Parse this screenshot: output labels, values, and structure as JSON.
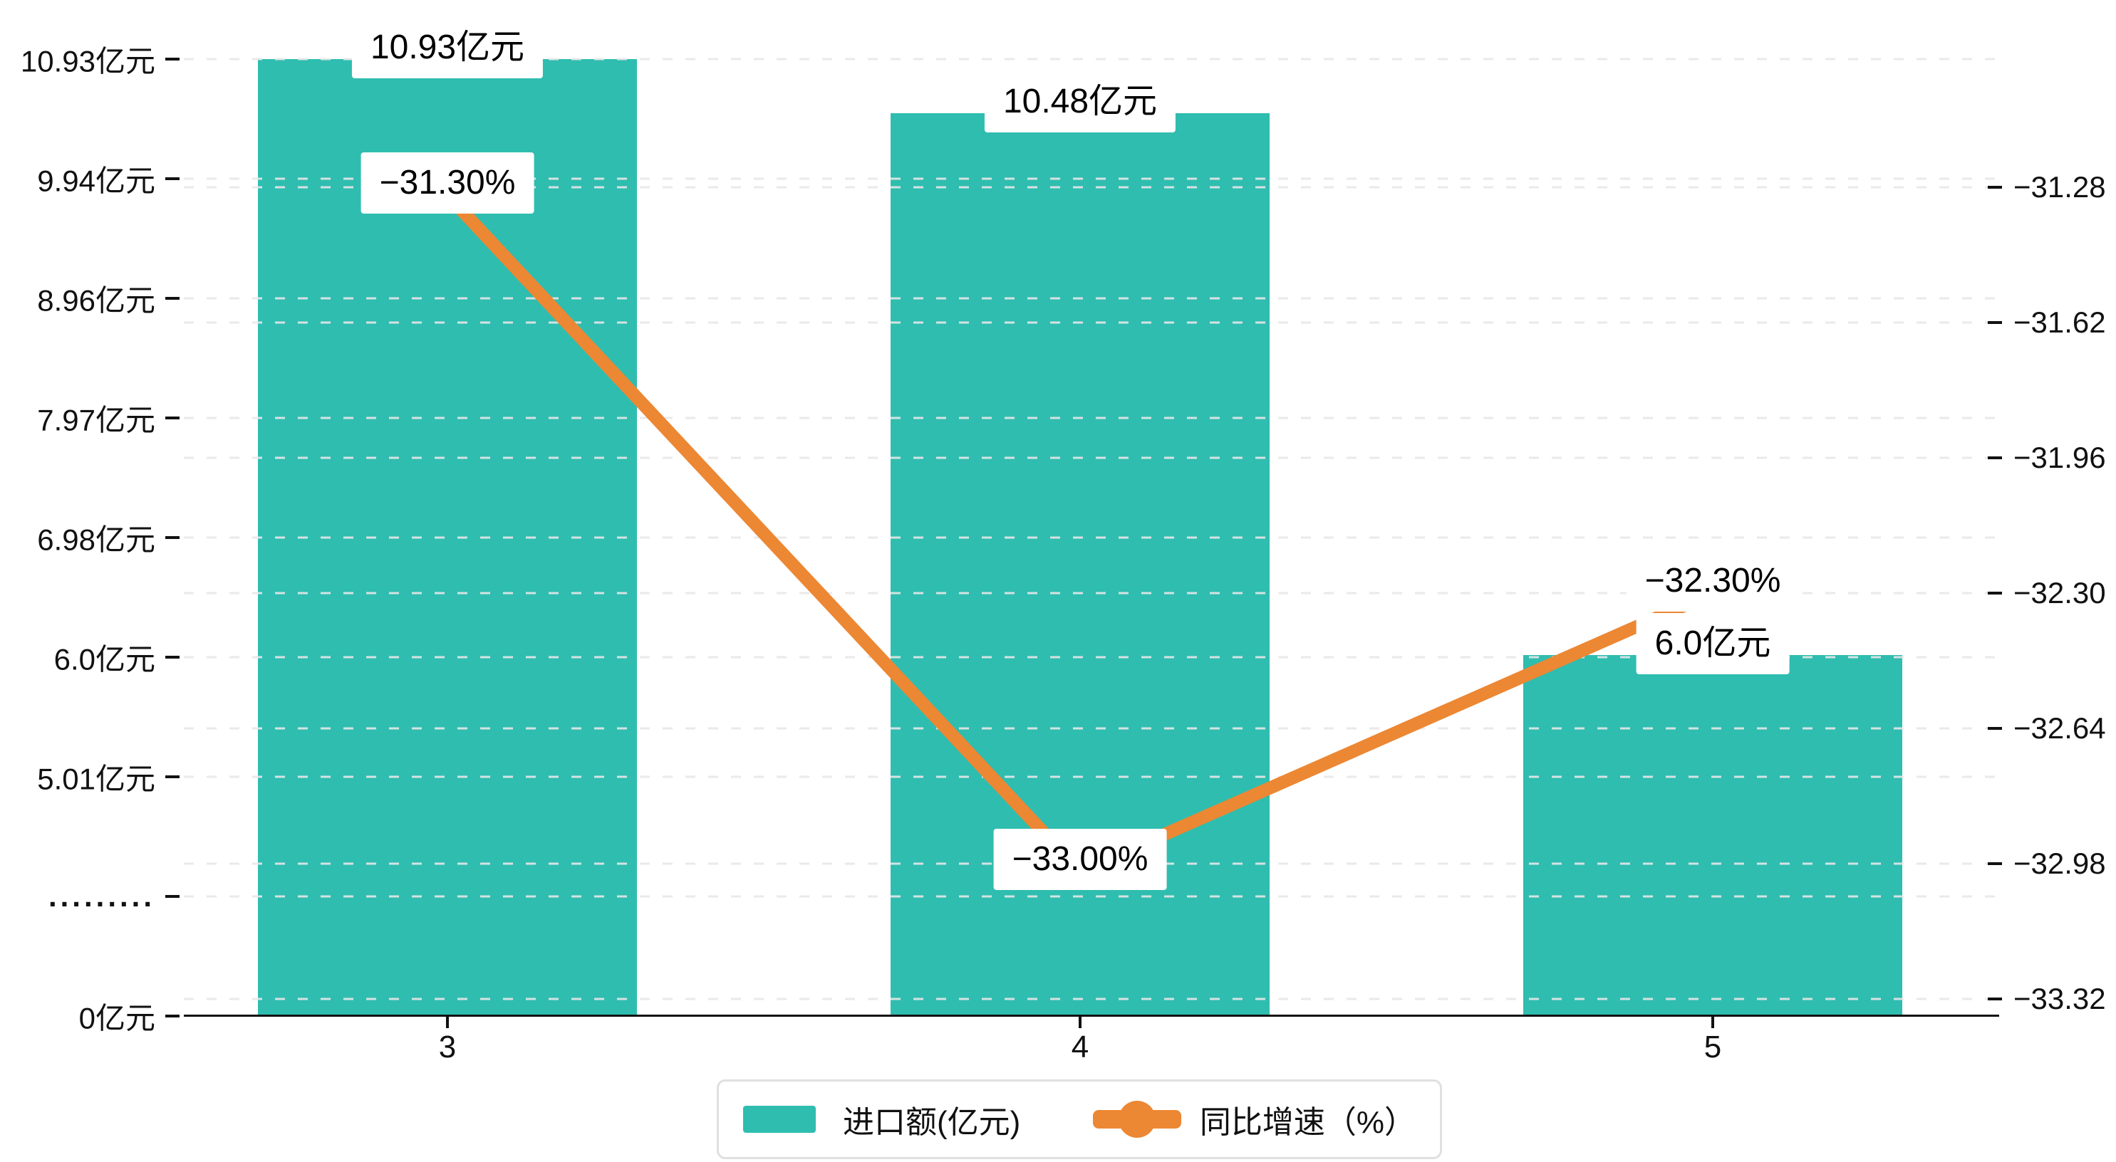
{
  "chart_data": {
    "type": "combo-bar-line",
    "categories": [
      "3",
      "4",
      "5"
    ],
    "series": [
      {
        "name": "进口额(亿元)",
        "type": "bar",
        "axis": "left",
        "color": "#2fbdb0",
        "values": [
          10.93,
          10.48,
          6.0
        ],
        "data_labels": [
          "10.93亿元",
          "10.48亿元",
          "6.0亿元"
        ]
      },
      {
        "name": "同比增速（%）",
        "type": "line",
        "axis": "right",
        "color": "#ec8733",
        "values": [
          -31.3,
          -33.0,
          -32.3
        ],
        "data_labels": [
          "−31.30%",
          "−33.00%",
          "−32.30%"
        ]
      }
    ],
    "left_axis": {
      "tick_labels": [
        "10.93亿元",
        "9.94亿元",
        "8.96亿元",
        "7.97亿元",
        "6.98亿元",
        "6.0亿元",
        "5.01亿元",
        ".........",
        "0亿元"
      ],
      "tick_values": [
        10.93,
        9.94,
        8.96,
        7.97,
        6.98,
        6.0,
        5.01,
        null,
        0
      ],
      "axis_break": true,
      "break_label_index": 7
    },
    "right_axis": {
      "tick_labels": [
        "−31.28",
        "−31.62",
        "−31.96",
        "−32.30",
        "−32.64",
        "−32.98",
        "−33.32"
      ],
      "min": -33.32,
      "max": -31.28
    },
    "x_axis": {
      "tick_labels": [
        "3",
        "4",
        "5"
      ]
    },
    "grid": {
      "dashed": true,
      "color": "#e8e8e8"
    },
    "legend": {
      "position": "bottom",
      "items": [
        "进口额(亿元)",
        "同比增速（%）"
      ]
    },
    "colors": {
      "bar": "#2fbdb0",
      "line": "#ec8733",
      "grid": "#e8e8e8",
      "axis": "#111111",
      "text": "#1a1a1a",
      "label_background": "#ffffff",
      "legend_border": "#e0e0e0"
    }
  }
}
